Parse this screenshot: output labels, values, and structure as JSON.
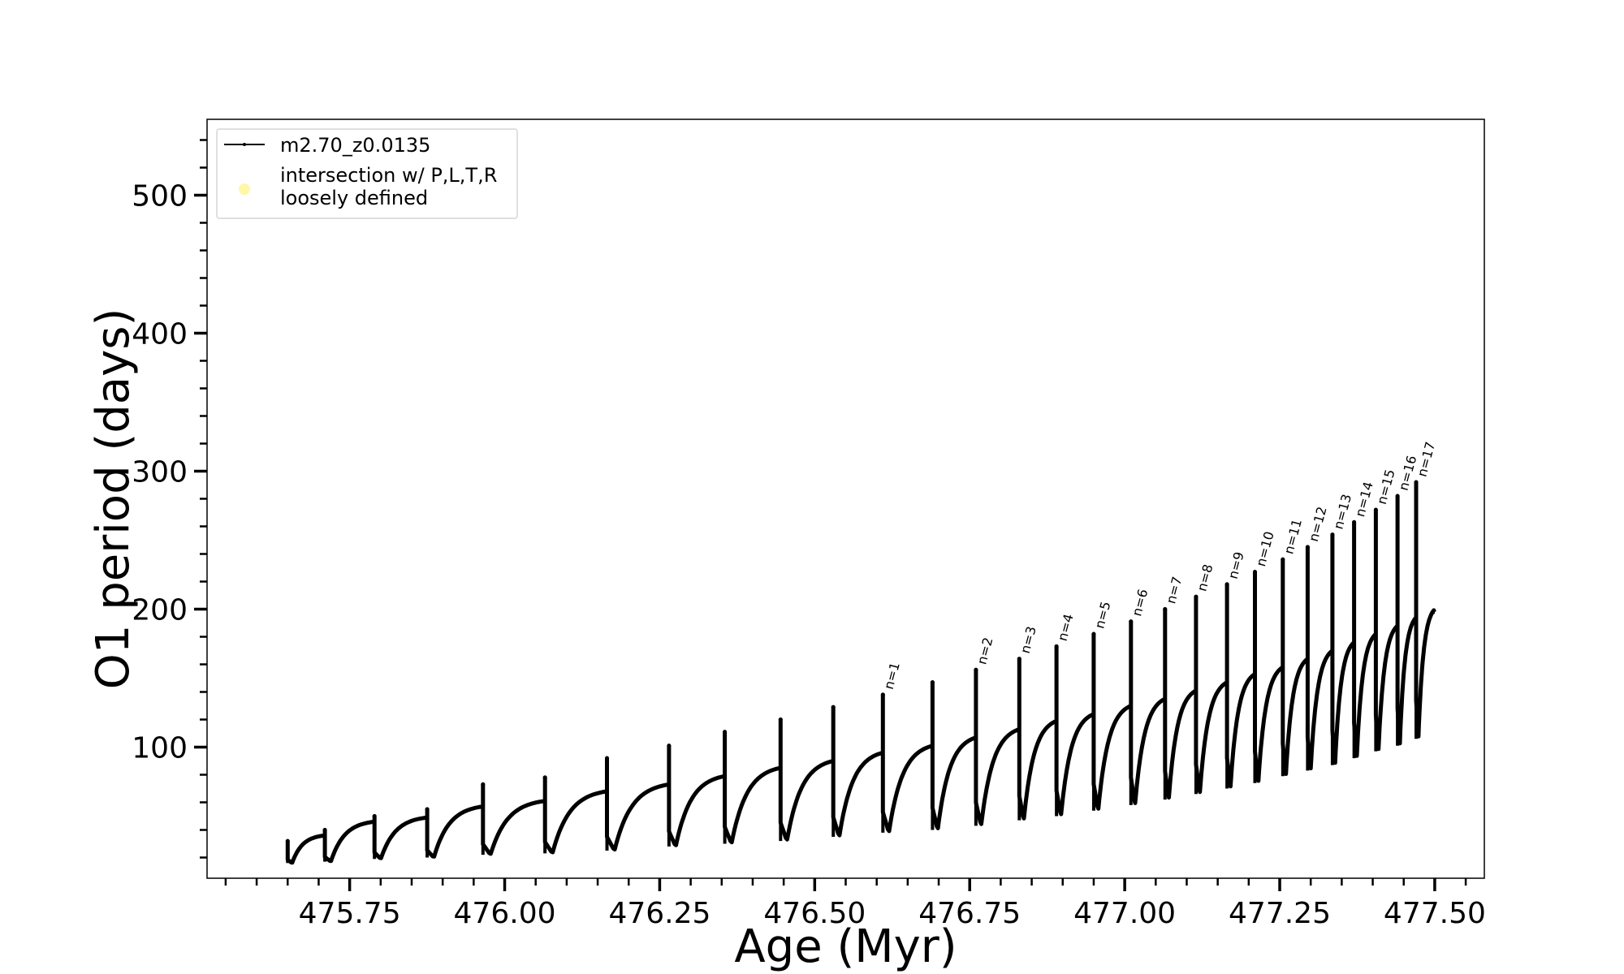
{
  "chart_data": {
    "type": "line",
    "title": "",
    "xlabel": "Age (Myr)",
    "ylabel": "O1 period (days)",
    "xlim": [
      475.52,
      477.58
    ],
    "ylim": [
      5,
      555
    ],
    "x_ticks": [
      475.75,
      476.0,
      476.25,
      476.5,
      476.75,
      477.0,
      477.25,
      477.5
    ],
    "x_tick_labels": [
      "475.75",
      "476.00",
      "476.25",
      "476.50",
      "476.75",
      "477.00",
      "477.25",
      "477.50"
    ],
    "y_ticks": [
      100,
      200,
      300,
      400,
      500
    ],
    "y_tick_labels": [
      "100",
      "200",
      "300",
      "400",
      "500"
    ],
    "grid": false,
    "legend": {
      "placement": "top-left",
      "entries": [
        {
          "label": "m2.70_z0.0135",
          "style": "line-with-dots",
          "color": "#000000"
        },
        {
          "label_lines": [
            "intersection w/ P,L,T,R",
            "loosely defined"
          ],
          "style": "marker",
          "color": "#fff7a8"
        }
      ]
    },
    "series": [
      {
        "name": "m2.70_z0.0135",
        "color": "#000000",
        "pulses": [
          {
            "start": 475.65,
            "end": 475.71,
            "min": 16,
            "max": 36,
            "spike": 32
          },
          {
            "start": 475.71,
            "end": 475.79,
            "min": 17,
            "max": 46,
            "spike": 40
          },
          {
            "start": 475.79,
            "end": 475.875,
            "min": 19,
            "max": 49,
            "spike": 50
          },
          {
            "start": 475.875,
            "end": 475.965,
            "min": 20,
            "max": 57,
            "spike": 55
          },
          {
            "start": 475.965,
            "end": 476.065,
            "min": 22,
            "max": 61,
            "spike": 73
          },
          {
            "start": 476.065,
            "end": 476.165,
            "min": 23,
            "max": 68,
            "spike": 78
          },
          {
            "start": 476.165,
            "end": 476.265,
            "min": 25,
            "max": 73,
            "spike": 92
          },
          {
            "start": 476.265,
            "end": 476.355,
            "min": 28,
            "max": 79,
            "spike": 101
          },
          {
            "start": 476.355,
            "end": 476.445,
            "min": 30,
            "max": 85,
            "spike": 111
          },
          {
            "start": 476.445,
            "end": 476.53,
            "min": 32,
            "max": 90,
            "spike": 120
          },
          {
            "start": 476.53,
            "end": 476.61,
            "min": 35,
            "max": 96,
            "spike": 129
          },
          {
            "start": 476.61,
            "end": 476.69,
            "min": 38,
            "max": 101,
            "spike": 138
          },
          {
            "start": 476.69,
            "end": 476.76,
            "min": 40,
            "max": 107,
            "spike": 147
          },
          {
            "start": 476.76,
            "end": 476.83,
            "min": 43,
            "max": 113,
            "spike": 156
          },
          {
            "start": 476.83,
            "end": 476.89,
            "min": 47,
            "max": 119,
            "spike": 164
          },
          {
            "start": 476.89,
            "end": 476.95,
            "min": 50,
            "max": 124,
            "spike": 173
          },
          {
            "start": 476.95,
            "end": 477.01,
            "min": 54,
            "max": 130,
            "spike": 182
          },
          {
            "start": 477.01,
            "end": 477.065,
            "min": 58,
            "max": 135,
            "spike": 191
          },
          {
            "start": 477.065,
            "end": 477.115,
            "min": 62,
            "max": 141,
            "spike": 200
          },
          {
            "start": 477.115,
            "end": 477.165,
            "min": 66,
            "max": 147,
            "spike": 209
          },
          {
            "start": 477.165,
            "end": 477.21,
            "min": 70,
            "max": 153,
            "spike": 218
          },
          {
            "start": 477.21,
            "end": 477.255,
            "min": 74,
            "max": 158,
            "spike": 227
          },
          {
            "start": 477.255,
            "end": 477.295,
            "min": 79,
            "max": 164,
            "spike": 236
          },
          {
            "start": 477.295,
            "end": 477.335,
            "min": 83,
            "max": 170,
            "spike": 245
          },
          {
            "start": 477.335,
            "end": 477.37,
            "min": 87,
            "max": 176,
            "spike": 254
          },
          {
            "start": 477.37,
            "end": 477.405,
            "min": 92,
            "max": 182,
            "spike": 263
          },
          {
            "start": 477.405,
            "end": 477.44,
            "min": 97,
            "max": 188,
            "spike": 272
          },
          {
            "start": 477.44,
            "end": 477.47,
            "min": 101,
            "max": 194,
            "spike": 282
          },
          {
            "start": 477.47,
            "end": 477.5,
            "min": 106,
            "max": 200,
            "spike": 292
          }
        ]
      }
    ],
    "annotations": [
      {
        "text": "n=1",
        "x": 476.61,
        "y": 139
      },
      {
        "text": "n=2",
        "x": 476.76,
        "y": 157
      },
      {
        "text": "n=3",
        "x": 476.83,
        "y": 165
      },
      {
        "text": "n=4",
        "x": 476.89,
        "y": 174
      },
      {
        "text": "n=5",
        "x": 476.95,
        "y": 183
      },
      {
        "text": "n=6",
        "x": 477.01,
        "y": 192
      },
      {
        "text": "n=7",
        "x": 477.065,
        "y": 201
      },
      {
        "text": "n=8",
        "x": 477.115,
        "y": 210
      },
      {
        "text": "n=9",
        "x": 477.165,
        "y": 219
      },
      {
        "text": "n=10",
        "x": 477.21,
        "y": 228
      },
      {
        "text": "n=11",
        "x": 477.255,
        "y": 237
      },
      {
        "text": "n=12",
        "x": 477.295,
        "y": 246
      },
      {
        "text": "n=13",
        "x": 477.335,
        "y": 255
      },
      {
        "text": "n=14",
        "x": 477.37,
        "y": 264
      },
      {
        "text": "n=15",
        "x": 477.405,
        "y": 273
      },
      {
        "text": "n=16",
        "x": 477.44,
        "y": 283
      },
      {
        "text": "n=17",
        "x": 477.47,
        "y": 293
      }
    ]
  }
}
